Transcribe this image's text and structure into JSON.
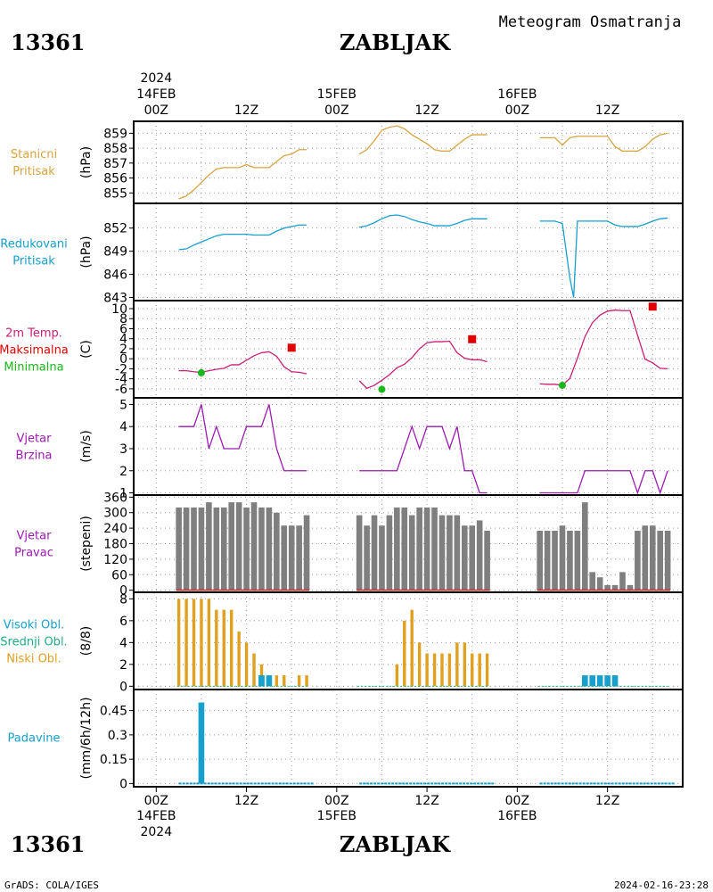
{
  "header": {
    "station_id": "13361",
    "station_name": "ZABLJAK",
    "product_title": "Meteogram Osmatranja",
    "year": "2024"
  },
  "footer": {
    "credit": "GrADS: COLA/IGES",
    "timestamp": "2024-02-16-23:28"
  },
  "time_axis": {
    "days": [
      "14FEB",
      "15FEB",
      "16FEB"
    ],
    "hour_labels": [
      "00Z",
      "12Z",
      "00Z",
      "12Z",
      "00Z",
      "12Z"
    ],
    "hour_positions": [
      0,
      12,
      24,
      36,
      48,
      60
    ],
    "range_hours": [
      -3,
      70
    ],
    "grid_hours": [
      0,
      6,
      12,
      18,
      24,
      30,
      36,
      42,
      48,
      54,
      60,
      66
    ]
  },
  "panels": [
    {
      "id": "pressure",
      "label_lines": [
        "Stanicni",
        "Pritisak"
      ],
      "label_colors": [
        "#d9a441",
        "#d9a441"
      ],
      "unit": "(hPa)"
    },
    {
      "id": "reduced-pressure",
      "label_lines": [
        "Redukovani",
        "Pritisak"
      ],
      "label_colors": [
        "#17a0cc",
        "#17a0cc"
      ],
      "unit": "(hPa)"
    },
    {
      "id": "temperature",
      "label_lines": [
        "2m Temp.",
        "Maksimalna",
        "Minimalna"
      ],
      "label_colors": [
        "#cc1f78",
        "#e00000",
        "#17b817"
      ],
      "unit": "(C)"
    },
    {
      "id": "wind-speed",
      "label_lines": [
        "Vjetar",
        "Brzina"
      ],
      "label_colors": [
        "#9b1bb0",
        "#9b1bb0"
      ],
      "unit": "(m/s)"
    },
    {
      "id": "wind-direction",
      "label_lines": [
        "Vjetar",
        "Pravac"
      ],
      "label_colors": [
        "#9b1bb0",
        "#9b1bb0"
      ],
      "unit": "(stepeni)"
    },
    {
      "id": "clouds",
      "label_lines": [
        "Visoki Obl.",
        "Srednji Obl.",
        "Niski Obl."
      ],
      "label_colors": [
        "#17a0cc",
        "#20b080",
        "#e0a020"
      ],
      "unit": "(8/8)"
    },
    {
      "id": "precipitation",
      "label_lines": [
        "Padavine"
      ],
      "label_colors": [
        "#17a0cc"
      ],
      "unit": "(mm/6h/12h)"
    }
  ],
  "chart_data": [
    {
      "type": "line",
      "id": "pressure",
      "ylabel": "(hPa)",
      "ylim": [
        854.3,
        859.8
      ],
      "yticks": [
        855,
        856,
        857,
        858,
        859
      ],
      "color": "#d9a441",
      "segments": [
        {
          "x": [
            3,
            4,
            5,
            6,
            7,
            8,
            9,
            10,
            11,
            12,
            13,
            14,
            15,
            16,
            17,
            18,
            19,
            20
          ],
          "y": [
            854.6,
            854.8,
            855.2,
            855.7,
            856.2,
            856.6,
            856.7,
            856.7,
            856.7,
            856.9,
            856.7,
            856.7,
            856.7,
            857.1,
            857.5,
            857.6,
            857.9,
            857.9
          ]
        },
        {
          "x": [
            27,
            28,
            29,
            30,
            31,
            32,
            33,
            34,
            35,
            36,
            37,
            38,
            39,
            40,
            41,
            42,
            43,
            44
          ],
          "y": [
            857.6,
            857.9,
            858.5,
            859.2,
            859.4,
            859.5,
            859.3,
            858.9,
            858.6,
            858.3,
            857.9,
            857.8,
            857.8,
            858.2,
            858.6,
            858.9,
            858.9,
            858.9
          ]
        },
        {
          "x": [
            51,
            52,
            53,
            54,
            55,
            56,
            57,
            58,
            59,
            60,
            61,
            62,
            63,
            64,
            65,
            66,
            67,
            68
          ],
          "y": [
            858.7,
            858.7,
            858.7,
            858.2,
            858.7,
            858.8,
            858.8,
            858.8,
            858.8,
            858.8,
            858.1,
            857.8,
            857.8,
            857.8,
            858.1,
            858.6,
            858.9,
            859.0
          ]
        }
      ]
    },
    {
      "type": "line",
      "id": "reduced-pressure",
      "ylabel": "(hPa)",
      "ylim": [
        842.6,
        855.2
      ],
      "yticks": [
        843,
        846,
        849,
        852
      ],
      "color": "#17a0cc",
      "segments": [
        {
          "x": [
            3,
            4,
            5,
            6,
            7,
            8,
            9,
            10,
            11,
            12,
            13,
            14,
            15,
            16,
            17,
            18,
            19,
            20
          ],
          "y": [
            849.2,
            849.3,
            849.8,
            850.2,
            850.6,
            851.0,
            851.2,
            851.2,
            851.2,
            851.2,
            851.1,
            851.1,
            851.1,
            851.6,
            852.0,
            852.2,
            852.4,
            852.4
          ]
        },
        {
          "x": [
            27,
            28,
            29,
            30,
            31,
            32,
            33,
            34,
            35,
            36,
            37,
            38,
            39,
            40,
            41,
            42,
            43,
            44
          ],
          "y": [
            852.1,
            852.3,
            852.7,
            853.2,
            853.6,
            853.7,
            853.5,
            853.1,
            852.8,
            852.6,
            852.3,
            852.3,
            852.3,
            852.6,
            853.0,
            853.2,
            853.2,
            853.2
          ]
        },
        {
          "x": [
            51,
            52,
            53,
            54,
            55,
            55.5,
            56,
            57,
            58,
            59,
            60,
            61,
            62,
            63,
            64,
            65,
            66,
            67,
            68
          ],
          "y": [
            852.9,
            852.9,
            852.9,
            852.6,
            845.5,
            843.0,
            852.9,
            852.9,
            852.9,
            852.9,
            852.9,
            852.4,
            852.2,
            852.2,
            852.2,
            852.5,
            852.9,
            853.2,
            853.3
          ]
        }
      ]
    },
    {
      "type": "line",
      "id": "temperature",
      "ylabel": "(C)",
      "ylim": [
        -7.8,
        11.6
      ],
      "yticks": [
        -6,
        -4,
        -2,
        0,
        2,
        4,
        6,
        8,
        10
      ],
      "series": [
        {
          "name": "2m Temp.",
          "color": "#cc1f78",
          "segments": [
            {
              "x": [
                3,
                4,
                5,
                6,
                7,
                8,
                9,
                10,
                11,
                12,
                13,
                14,
                15,
                16,
                17,
                18,
                19,
                20
              ],
              "y": [
                -2.4,
                -2.4,
                -2.6,
                -2.7,
                -2.4,
                -2.1,
                -1.9,
                -1.2,
                -1.2,
                -0.3,
                0.6,
                1.2,
                1.4,
                0.5,
                -1.6,
                -2.6,
                -2.7,
                -3.0
              ]
            },
            {
              "x": [
                27,
                28,
                29,
                30,
                31,
                32,
                33,
                34,
                35,
                36,
                37,
                38,
                39,
                40,
                41,
                42,
                43,
                44
              ],
              "y": [
                -4.4,
                -5.9,
                -5.3,
                -4.3,
                -3.2,
                -1.8,
                -1.1,
                0.2,
                2.0,
                3.2,
                3.4,
                3.4,
                3.5,
                1.2,
                0.1,
                -0.2,
                -0.2,
                -0.6
              ]
            },
            {
              "x": [
                51,
                52,
                53,
                54,
                55,
                56,
                57,
                58,
                59,
                60,
                61,
                62,
                63,
                64,
                65,
                66,
                67,
                68
              ],
              "y": [
                -5.0,
                -5.1,
                -5.1,
                -5.3,
                -3.9,
                0.1,
                4.4,
                7.2,
                8.7,
                9.5,
                9.7,
                9.6,
                9.6,
                4.7,
                -0.1,
                -0.8,
                -1.9,
                -2.0
              ]
            }
          ]
        },
        {
          "name": "Maksimalna",
          "color": "#e00000",
          "type": "square",
          "x": [
            18,
            42,
            66
          ],
          "y": [
            2.2,
            3.9,
            10.4
          ]
        },
        {
          "name": "Minimalna",
          "color": "#17b817",
          "type": "dot",
          "x": [
            6,
            30,
            54
          ],
          "y": [
            -2.8,
            -6.1,
            -5.3
          ]
        }
      ]
    },
    {
      "type": "line",
      "id": "wind-speed",
      "ylabel": "(m/s)",
      "ylim": [
        0.9,
        5.3
      ],
      "yticks": [
        1,
        2,
        3,
        4,
        5
      ],
      "color": "#9b1bb0",
      "segments": [
        {
          "x": [
            3,
            4,
            5,
            6,
            7,
            8,
            9,
            10,
            11,
            12,
            13,
            14,
            15,
            16,
            17,
            18,
            19,
            20
          ],
          "y": [
            4,
            4,
            4,
            5,
            3,
            4,
            3,
            3,
            3,
            4,
            4,
            4,
            5,
            3,
            2,
            2,
            2,
            2
          ]
        },
        {
          "x": [
            27,
            28,
            29,
            30,
            31,
            32,
            33,
            34,
            35,
            36,
            37,
            38,
            39,
            40,
            41,
            42,
            43,
            44
          ],
          "y": [
            2,
            2,
            2,
            2,
            2,
            2,
            3,
            4,
            3,
            4,
            4,
            4,
            3,
            4,
            2,
            2,
            1,
            1
          ]
        },
        {
          "x": [
            51,
            52,
            53,
            54,
            55,
            56,
            57,
            58,
            59,
            60,
            61,
            62,
            63,
            64,
            65,
            66,
            67,
            68
          ],
          "y": [
            1,
            1,
            1,
            1,
            1,
            1,
            2,
            2,
            2,
            2,
            2,
            2,
            2,
            1,
            2,
            2,
            1,
            2
          ]
        }
      ]
    },
    {
      "type": "bar",
      "id": "wind-direction",
      "ylabel": "(stepeni)",
      "ylim": [
        -8,
        368
      ],
      "yticks": [
        0,
        60,
        120,
        180,
        240,
        300,
        360
      ],
      "color": "#7f7f7f",
      "baseline_color": "#cc2020",
      "x": [
        3,
        4,
        5,
        6,
        7,
        8,
        9,
        10,
        11,
        12,
        13,
        14,
        15,
        16,
        17,
        18,
        19,
        20,
        27,
        28,
        29,
        30,
        31,
        32,
        33,
        34,
        35,
        36,
        37,
        38,
        39,
        40,
        41,
        42,
        43,
        44,
        51,
        52,
        53,
        54,
        55,
        56,
        57,
        58,
        59,
        60,
        61,
        62,
        63,
        64,
        65,
        66,
        67,
        68
      ],
      "values": [
        320,
        320,
        320,
        320,
        340,
        320,
        320,
        340,
        340,
        320,
        340,
        320,
        320,
        300,
        250,
        250,
        250,
        290,
        290,
        250,
        290,
        250,
        290,
        320,
        320,
        290,
        320,
        320,
        320,
        290,
        290,
        290,
        250,
        250,
        270,
        230,
        230,
        230,
        230,
        250,
        230,
        230,
        340,
        70,
        50,
        20,
        20,
        70,
        20,
        230,
        250,
        250,
        230,
        230
      ]
    },
    {
      "type": "bar",
      "id": "clouds",
      "ylabel": "(8/8)",
      "ylim": [
        -0.3,
        8.6
      ],
      "yticks": [
        0,
        2,
        4,
        6,
        8
      ],
      "series": [
        {
          "name": "Niski Obl.",
          "color": "#e0a020",
          "x": [
            3,
            4,
            5,
            6,
            7,
            8,
            9,
            10,
            11,
            12,
            13,
            14,
            15,
            16,
            17,
            18,
            19,
            20,
            27,
            28,
            29,
            30,
            31,
            32,
            33,
            34,
            35,
            36,
            37,
            38,
            39,
            40,
            41,
            42,
            43,
            44,
            51,
            52,
            53,
            54,
            55,
            56,
            57,
            58,
            59,
            60,
            61,
            62,
            63,
            64,
            65,
            66,
            67,
            68
          ],
          "values": [
            8,
            8,
            8,
            8,
            8,
            7,
            7,
            7,
            5,
            4,
            3,
            2,
            1,
            1,
            1,
            0,
            1,
            1,
            0,
            0,
            0,
            0,
            0,
            2,
            6,
            7,
            4,
            3,
            3,
            3,
            3,
            4,
            4,
            3,
            3,
            3,
            0,
            0,
            0,
            0,
            0,
            0,
            0,
            0,
            0,
            0,
            0,
            0,
            0,
            0,
            0,
            0,
            0,
            0
          ]
        },
        {
          "name": "Srednji Obl.",
          "color": "#20b080",
          "x": [
            14
          ],
          "values": [
            1
          ]
        },
        {
          "name": "Visoki Obl.",
          "color": "#17a0cc",
          "x": [
            14,
            15,
            57,
            58,
            59,
            60,
            61
          ],
          "values": [
            1,
            1,
            1,
            1,
            1,
            1,
            1
          ]
        }
      ]
    },
    {
      "type": "bar",
      "id": "precipitation",
      "ylabel": "(mm/6h/12h)",
      "ylim": [
        -0.02,
        0.58
      ],
      "yticks": [
        0,
        0.15,
        0.3,
        0.45
      ],
      "ytick_labels": [
        "0",
        "0.15",
        "0.3",
        "0.45"
      ],
      "color": "#17a0cc",
      "x": [
        6
      ],
      "values": [
        0.5
      ],
      "zero_segments": [
        [
          3,
          21
        ],
        [
          27,
          45
        ],
        [
          51,
          69
        ]
      ]
    }
  ]
}
